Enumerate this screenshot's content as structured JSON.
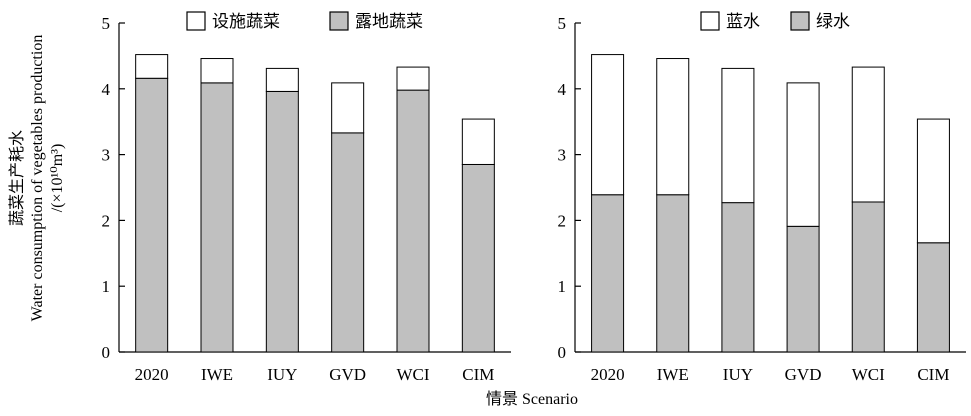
{
  "shared": {
    "categories": [
      "2020",
      "IWE",
      "IUY",
      "GVD",
      "WCI",
      "CIM"
    ],
    "xlabel": "情景 Scenario",
    "ylabel_lines": [
      "蔬菜生产耗水",
      "Water consumption of vegetables production",
      "/(×10¹⁰m³)"
    ],
    "ylim": [
      0,
      5
    ],
    "yticks": [
      "0",
      "1",
      "2",
      "3",
      "4",
      "5"
    ]
  },
  "colors": {
    "bottom": "#c0c0c0",
    "top": "#ffffff",
    "stroke": "#000000"
  },
  "chart_data": [
    {
      "type": "bar",
      "stacked": true,
      "categories": [
        "2020",
        "IWE",
        "IUY",
        "GVD",
        "WCI",
        "CIM"
      ],
      "series": [
        {
          "name": "露地蔬菜",
          "values": [
            4.16,
            4.09,
            3.96,
            3.33,
            3.98,
            2.85
          ]
        },
        {
          "name": "设施蔬菜",
          "values": [
            0.36,
            0.37,
            0.35,
            0.76,
            0.35,
            0.69
          ]
        }
      ],
      "legend": [
        "设施蔬菜",
        "露地蔬菜"
      ],
      "ylim": [
        0,
        5
      ],
      "legend_position": "top-center"
    },
    {
      "type": "bar",
      "stacked": true,
      "categories": [
        "2020",
        "IWE",
        "IUY",
        "GVD",
        "WCI",
        "CIM"
      ],
      "series": [
        {
          "name": "绿水",
          "values": [
            2.39,
            2.39,
            2.27,
            1.91,
            2.28,
            1.66
          ]
        },
        {
          "name": "蓝水",
          "values": [
            2.13,
            2.07,
            2.04,
            2.18,
            2.05,
            1.88
          ]
        }
      ],
      "legend": [
        "蓝水",
        "绿水"
      ],
      "ylim": [
        0,
        5
      ],
      "legend_position": "top-right"
    }
  ]
}
